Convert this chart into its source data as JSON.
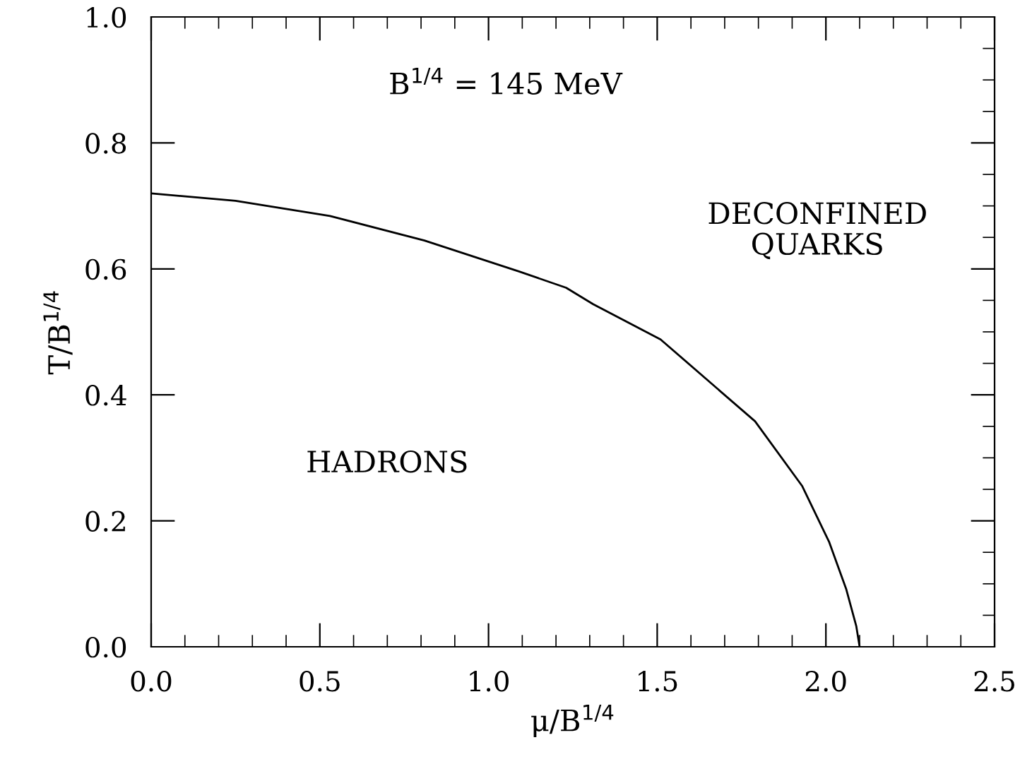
{
  "chart_data": {
    "type": "line",
    "xlabel": "μ/B$^{1/4}$",
    "ylabel": "T/B$^{1/4}$",
    "x": [
      0,
      0.25,
      0.53,
      0.81,
      1.09,
      1.23,
      1.31,
      1.51,
      1.79,
      1.93,
      2.01,
      2.06,
      2.09,
      2.1
    ],
    "series": [
      {
        "color": "#000000",
        "values": [
          0.72,
          0.708,
          0.684,
          0.645,
          0.596,
          0.57,
          0.544,
          0.488,
          0.358,
          0.255,
          0.166,
          0.092,
          0.033,
          0
        ]
      }
    ],
    "xlim": [
      0,
      2.5
    ],
    "ylim": [
      0,
      1.0
    ],
    "xticks": [
      {
        "value": 0,
        "label": "0.0"
      },
      0.5,
      {
        "value": 1,
        "label": "1.0"
      },
      1.5,
      {
        "value": 2,
        "label": "2.0"
      },
      2.5
    ],
    "yticks": [
      {
        "value": 0,
        "label": "0.0"
      },
      0.2,
      0.4,
      0.6,
      0.8,
      {
        "value": 1,
        "label": "1.0"
      }
    ],
    "annotations": [
      "B$^{1/4}$ = 145 MeV",
      "DECONFINED\nQUARKS",
      "HADRONS"
    ],
    "grid": false,
    "legend": false,
    "marker": "none",
    "line_style": "solid"
  }
}
